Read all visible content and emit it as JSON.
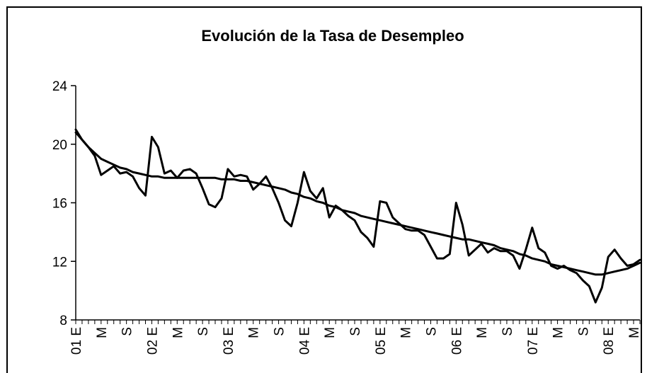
{
  "chart_data": {
    "type": "line",
    "title": "Evolución de la Tasa de Desempleo",
    "categories": [
      "01 E",
      null,
      null,
      null,
      "M",
      null,
      null,
      null,
      "S",
      null,
      null,
      null,
      "02 E",
      null,
      null,
      null,
      "M",
      null,
      null,
      null,
      "S",
      null,
      null,
      null,
      "03 E",
      null,
      null,
      null,
      "M",
      null,
      null,
      null,
      "S",
      null,
      null,
      null,
      "04 E",
      null,
      null,
      null,
      "M",
      null,
      null,
      null,
      "S",
      null,
      null,
      null,
      "05 E",
      null,
      null,
      null,
      "M",
      null,
      null,
      null,
      "S",
      null,
      null,
      null,
      "06 E",
      null,
      null,
      null,
      "M",
      null,
      null,
      null,
      "S",
      null,
      null,
      null,
      "07 E",
      null,
      null,
      null,
      "M",
      null,
      null,
      null,
      "S",
      null,
      null,
      null,
      "08 E",
      null,
      null,
      null,
      "M",
      null
    ],
    "series": [
      {
        "color": "#000000",
        "values": [
          21.0,
          20.3,
          19.8,
          19.2,
          17.9,
          18.2,
          18.5,
          18.0,
          18.1,
          17.8,
          17.0,
          16.5,
          20.5,
          19.8,
          18.0,
          18.2,
          17.7,
          18.2,
          18.3,
          18.0,
          17.0,
          15.9,
          15.7,
          16.3,
          18.3,
          17.8,
          17.9,
          17.8,
          16.9,
          17.3,
          17.8,
          17.0,
          16.0,
          14.8,
          14.4,
          16.0,
          18.1,
          16.8,
          16.3,
          17.0,
          15.0,
          15.8,
          15.5,
          15.1,
          14.8,
          14.0,
          13.6,
          13.0,
          16.1,
          16.0,
          15.0,
          14.6,
          14.2,
          14.1,
          14.1,
          13.8,
          13.0,
          12.2,
          12.2,
          12.5,
          16.0,
          14.5,
          12.4,
          12.8,
          13.2,
          12.6,
          12.9,
          12.7,
          12.7,
          12.4,
          11.5,
          12.8,
          14.3,
          12.9,
          12.6,
          11.7,
          11.5,
          11.7,
          11.4,
          11.2,
          10.7,
          10.3,
          9.2,
          10.2,
          12.3,
          12.8,
          12.2,
          11.7,
          11.8,
          12.1
        ]
      },
      {
        "color": "#000000",
        "values": [
          20.8,
          20.3,
          19.8,
          19.4,
          19.0,
          18.8,
          18.6,
          18.4,
          18.3,
          18.1,
          18.0,
          17.9,
          17.8,
          17.8,
          17.7,
          17.7,
          17.7,
          17.7,
          17.7,
          17.7,
          17.7,
          17.7,
          17.7,
          17.6,
          17.6,
          17.6,
          17.5,
          17.5,
          17.4,
          17.3,
          17.2,
          17.1,
          17.0,
          16.9,
          16.7,
          16.6,
          16.4,
          16.3,
          16.1,
          16.0,
          15.8,
          15.7,
          15.5,
          15.4,
          15.3,
          15.1,
          15.0,
          14.9,
          14.8,
          14.7,
          14.6,
          14.5,
          14.4,
          14.3,
          14.2,
          14.1,
          14.0,
          13.9,
          13.8,
          13.7,
          13.6,
          13.5,
          13.5,
          13.4,
          13.3,
          13.2,
          13.1,
          12.9,
          12.8,
          12.7,
          12.5,
          12.4,
          12.2,
          12.1,
          12.0,
          11.8,
          11.7,
          11.6,
          11.5,
          11.4,
          11.3,
          11.2,
          11.1,
          11.1,
          11.2,
          11.3,
          11.4,
          11.5,
          11.7,
          11.9
        ]
      }
    ],
    "ylim": [
      8,
      24
    ],
    "yticks": [
      8,
      12,
      16,
      20,
      24
    ]
  }
}
